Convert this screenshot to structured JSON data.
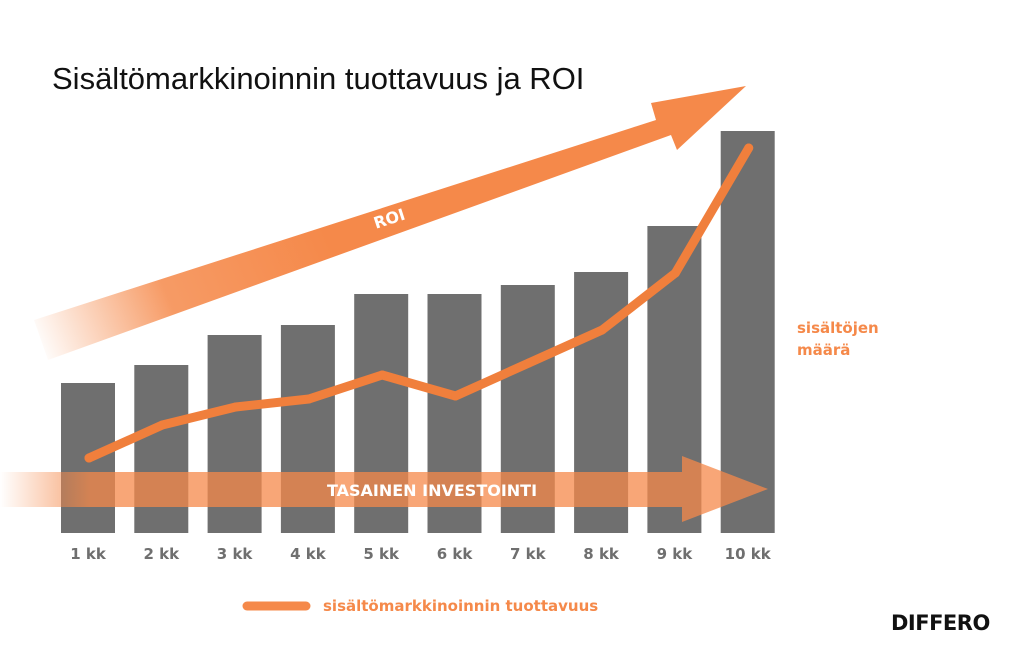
{
  "title": "Sisältömarkkinoinnin tuottavuus ja ROI",
  "brand": "DIFFERO",
  "colors": {
    "bar": "#6f6f6f",
    "accent": "#f5894a",
    "line": "#f07f3c"
  },
  "chart_data": {
    "type": "bar",
    "categories": [
      "1 kk",
      "2 kk",
      "3 kk",
      "4 kk",
      "5 kk",
      "6 kk",
      "7 kk",
      "8 kk",
      "9 kk",
      "10 kk"
    ],
    "series": [
      {
        "name": "sisältöjen määrä",
        "type": "bar",
        "values": [
          150,
          168,
          198,
          208,
          239,
          239,
          248,
          261,
          307,
          402
        ]
      },
      {
        "name": "sisältömarkkinoinnin tuottavuus",
        "type": "line",
        "values": [
          75,
          108,
          126,
          134,
          158,
          137,
          170,
          203,
          260,
          385
        ]
      }
    ],
    "ylim": [
      0,
      402
    ],
    "annotations": {
      "roi_arrow": "ROI",
      "investment_arrow": "TASAINEN INVESTOINTI"
    },
    "bar_label": "sisältöjen\nmäärä",
    "legend": {
      "position": "bottom",
      "label": "sisältömarkkinoinnin tuottavuus"
    },
    "grid": false
  }
}
